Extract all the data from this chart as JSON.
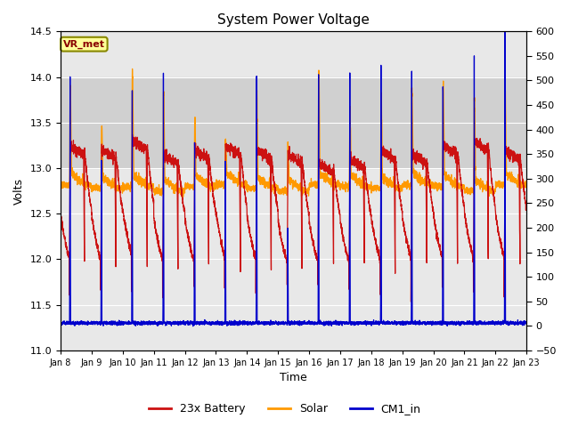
{
  "title": "System Power Voltage",
  "xlabel": "Time",
  "ylabel": "Volts",
  "ylim_left": [
    11.0,
    14.5
  ],
  "ylim_right": [
    -50,
    600
  ],
  "yticks_left": [
    11.0,
    11.5,
    12.0,
    12.5,
    13.0,
    13.5,
    14.0,
    14.5
  ],
  "yticks_right": [
    -50,
    0,
    50,
    100,
    150,
    200,
    250,
    300,
    350,
    400,
    450,
    500,
    550,
    600
  ],
  "xlim": [
    8,
    23
  ],
  "xtick_positions": [
    8,
    9,
    10,
    11,
    12,
    13,
    14,
    15,
    16,
    17,
    18,
    19,
    20,
    21,
    22,
    23
  ],
  "xtick_labels": [
    "Jan 8",
    "Jan 9",
    "Jan 10",
    "Jan 11",
    "Jan 12",
    "Jan 13",
    "Jan 14",
    "Jan 15",
    "Jan 16",
    "Jan 17",
    "Jan 18",
    "Jan 19",
    "Jan 20",
    "Jan 21",
    "Jan 22",
    "Jan 23"
  ],
  "shaded_band_low": 13.0,
  "shaded_band_high": 14.0,
  "bg_color": "#ffffff",
  "plot_bg": "#e8e8e8",
  "band_color": "#d0d0d0",
  "grid_color": "#ffffff",
  "battery_color": "#cc1111",
  "solar_color": "#ff9900",
  "cm1_color": "#0000cc",
  "vr_met_bg": "#ffff99",
  "vr_met_edge": "#888800",
  "vr_met_text": "#880000",
  "legend_labels": [
    "23x Battery",
    "Solar",
    "CM1_in"
  ],
  "figsize": [
    6.4,
    4.8
  ],
  "dpi": 100,
  "title_fontsize": 11,
  "axis_label_fontsize": 9,
  "tick_fontsize": 8,
  "legend_fontsize": 9
}
